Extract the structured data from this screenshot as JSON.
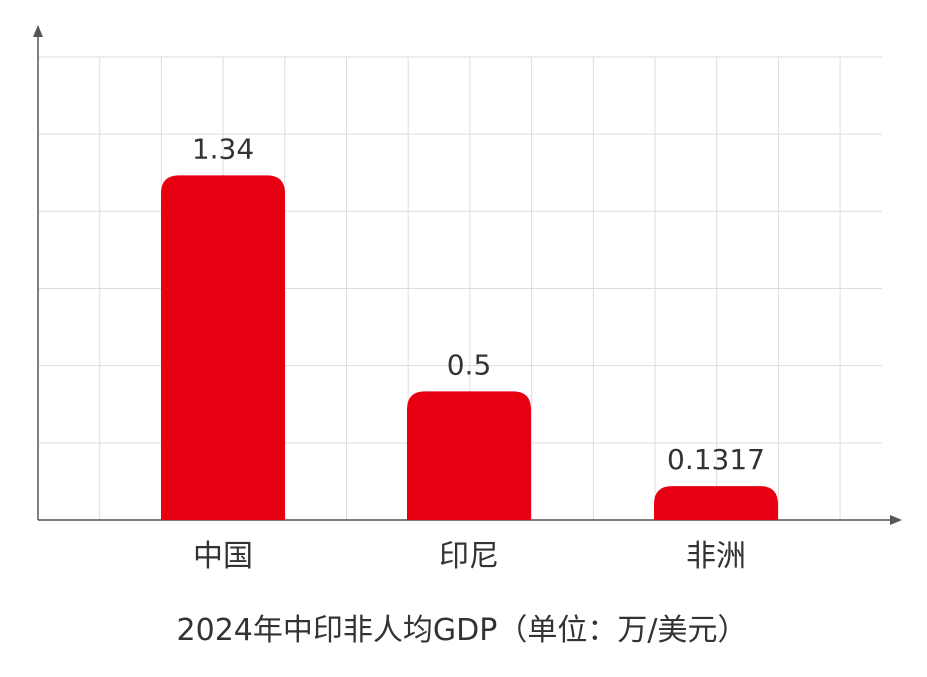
{
  "chart_data": {
    "type": "bar",
    "title": "2024年中印非人均GDP（单位：万/美元）",
    "categories": [
      "中国",
      "印尼",
      "非洲"
    ],
    "values": [
      1.34,
      0.5,
      0.1317
    ],
    "value_labels": [
      "1.34",
      "0.5",
      "0.1317"
    ],
    "xlabel": "",
    "ylabel": "",
    "ylim": [
      0,
      1.8
    ],
    "grid": true,
    "bar_color": "#e60012",
    "grid_color": "#dddddd",
    "axis_color": "#555555",
    "text_color": "#333333"
  }
}
